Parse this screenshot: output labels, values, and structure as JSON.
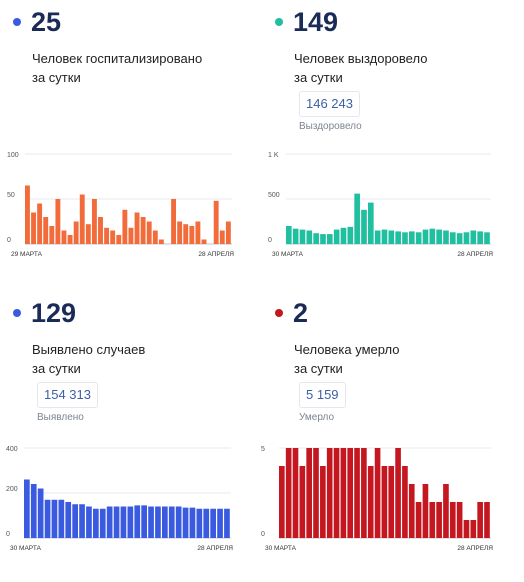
{
  "panels": [
    {
      "id": "hosp",
      "value": "25",
      "desc_line1": "Человек госпитализировано",
      "desc_line2": "за сутки",
      "color": "#3a5be0"
    },
    {
      "id": "rec",
      "value": "149",
      "desc_line1": "Человек выздоровело",
      "desc_line2": "за сутки",
      "total": "146 243",
      "total_caption": "Выздоровело",
      "color": "#1fbf9f"
    },
    {
      "id": "case",
      "value": "129",
      "desc_line1": "Выявлено случаев",
      "desc_line2": "за сутки",
      "total": "154 313",
      "total_caption": "Выявлено",
      "color": "#3a5be0"
    },
    {
      "id": "dead",
      "value": "2",
      "desc_line1": "Человека умерло",
      "desc_line2": "за сутки",
      "total": "5 159",
      "total_caption": "Умерло",
      "color": "#c41720"
    }
  ],
  "chart_data": [
    {
      "type": "bar",
      "panel": "hosp",
      "color": "#f26b3a",
      "ylim": [
        0,
        100
      ],
      "yticks": [
        {
          "v": 100,
          "label": "100"
        },
        {
          "v": 50,
          "label": "50"
        },
        {
          "v": 0,
          "label": "0"
        }
      ],
      "x_start_label": "29 марта",
      "x_end_label": "28 апреля",
      "values": [
        65,
        35,
        45,
        30,
        20,
        50,
        15,
        10,
        25,
        55,
        22,
        50,
        30,
        18,
        15,
        10,
        38,
        18,
        35,
        30,
        25,
        15,
        5,
        0,
        50,
        25,
        22,
        20,
        25,
        5,
        0,
        48,
        15,
        25
      ]
    },
    {
      "type": "bar",
      "panel": "rec",
      "color": "#1fbf9f",
      "ylim": [
        0,
        1000
      ],
      "yticks": [
        {
          "v": 1000,
          "label": "1 K"
        },
        {
          "v": 500,
          "label": "500"
        },
        {
          "v": 0,
          "label": "0"
        }
      ],
      "x_start_label": "30 марта",
      "x_end_label": "28 апреля",
      "values": [
        200,
        170,
        160,
        150,
        120,
        110,
        110,
        160,
        180,
        190,
        560,
        380,
        460,
        150,
        160,
        150,
        140,
        130,
        140,
        130,
        160,
        170,
        160,
        150,
        130,
        120,
        130,
        150,
        140,
        130
      ]
    },
    {
      "type": "bar",
      "panel": "case",
      "color": "#3a5be0",
      "ylim": [
        0,
        400
      ],
      "yticks": [
        {
          "v": 400,
          "label": "400"
        },
        {
          "v": 200,
          "label": "200"
        },
        {
          "v": 0,
          "label": "0"
        }
      ],
      "x_start_label": "30 марта",
      "x_end_label": "28 апреля",
      "values": [
        260,
        240,
        220,
        170,
        170,
        170,
        160,
        150,
        150,
        140,
        130,
        130,
        140,
        140,
        140,
        140,
        145,
        145,
        140,
        140,
        140,
        140,
        140,
        135,
        135,
        130,
        130,
        130,
        130,
        130
      ]
    },
    {
      "type": "bar",
      "panel": "dead",
      "color": "#c41720",
      "ylim": [
        0,
        5
      ],
      "yticks": [
        {
          "v": 5,
          "label": "5"
        },
        {
          "v": 0,
          "label": "0"
        }
      ],
      "x_start_label": "30 марта",
      "x_end_label": "28 апреля",
      "values": [
        4,
        5,
        5,
        4,
        5,
        5,
        4,
        5,
        5,
        5,
        5,
        5,
        5,
        4,
        5,
        4,
        4,
        5,
        4,
        3,
        2,
        3,
        2,
        2,
        3,
        2,
        2,
        1,
        1,
        2,
        2
      ]
    }
  ]
}
